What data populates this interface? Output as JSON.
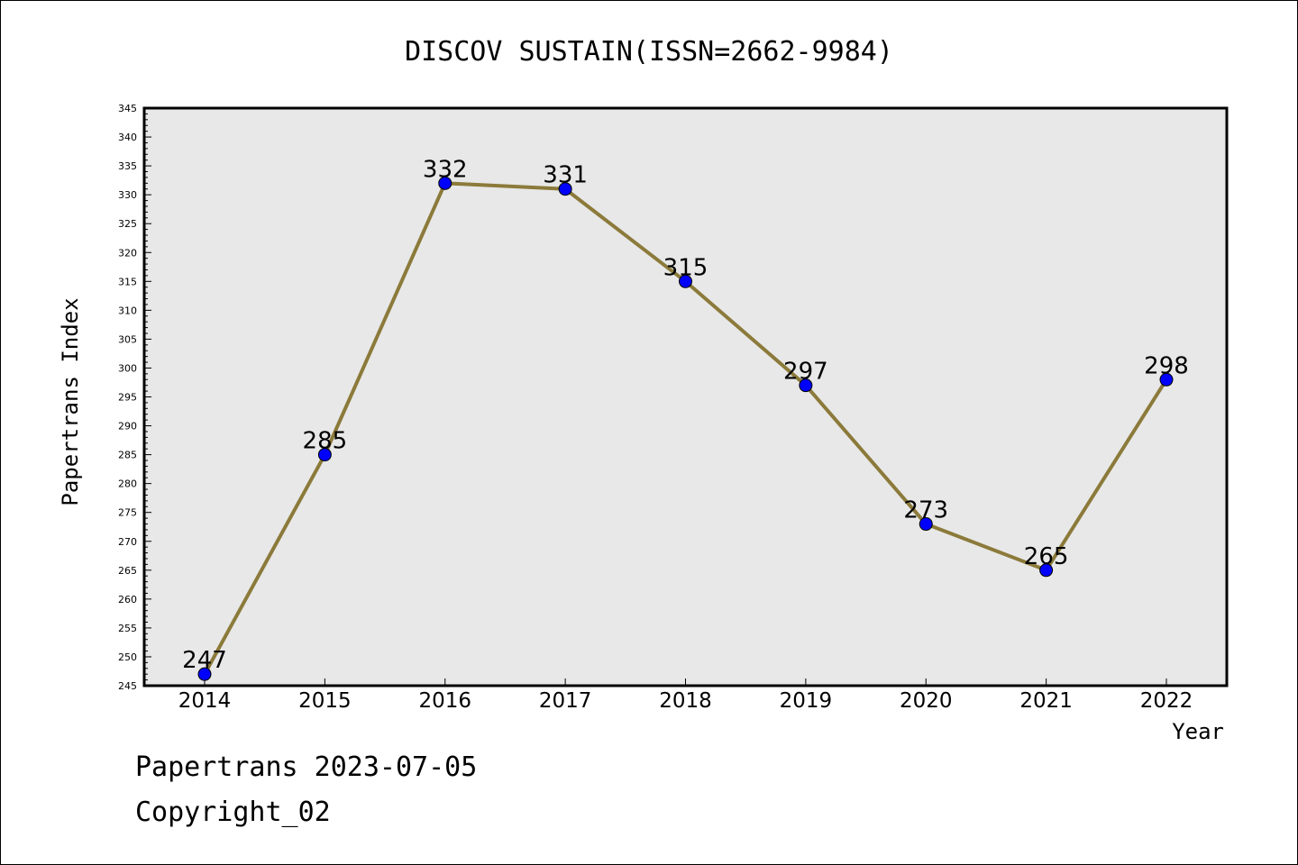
{
  "chart_data": {
    "type": "line",
    "title": "DISCOV SUSTAIN(ISSN=2662-9984)",
    "xlabel": "Year",
    "ylabel": "Papertrans Index",
    "categories": [
      "2014",
      "2015",
      "2016",
      "2017",
      "2018",
      "2019",
      "2020",
      "2021",
      "2022"
    ],
    "series": [
      {
        "values": [
          247,
          285,
          332,
          331,
          315,
          297,
          273,
          265,
          298
        ]
      }
    ],
    "ylim": [
      245,
      345
    ],
    "ytick_step": 5,
    "y_minor_step": 1,
    "grid": false,
    "data_labels": true,
    "colors": {
      "line": "#8b7a3a",
      "marker": "#0000ff",
      "plot_bg": "#e8e8e8"
    }
  },
  "footer": {
    "date_line": "Papertrans 2023-07-05",
    "copyright_line": "Copyright_02"
  }
}
